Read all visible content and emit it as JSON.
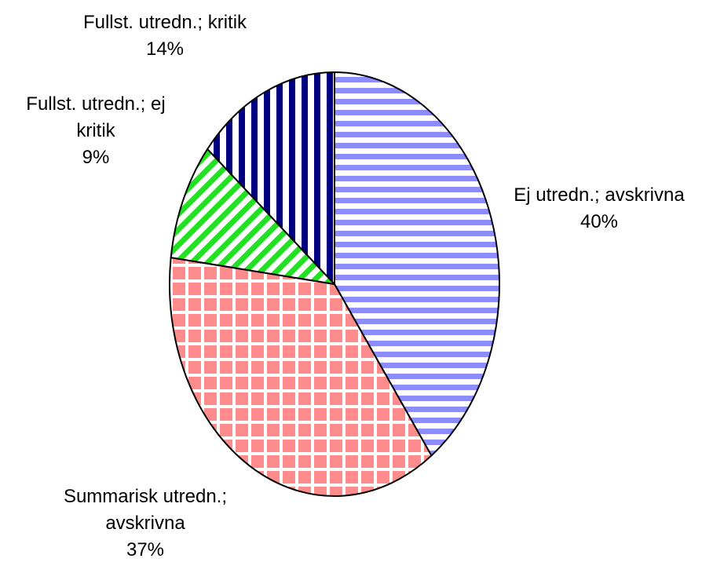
{
  "chart_data": {
    "type": "pie",
    "categories": [
      "Ej utredn.; avskrivna",
      "Summarisk utredn.; avskrivna",
      "Fullst. utredn.; ej kritik",
      "Fullst. utredn.; kritik"
    ],
    "values": [
      40,
      37,
      9,
      14
    ],
    "value_labels": [
      "40%",
      "37%",
      "9%",
      "14%"
    ],
    "colors": [
      "#8c8cff",
      "#ff8c8c",
      "#22e022",
      "#000080"
    ]
  }
}
